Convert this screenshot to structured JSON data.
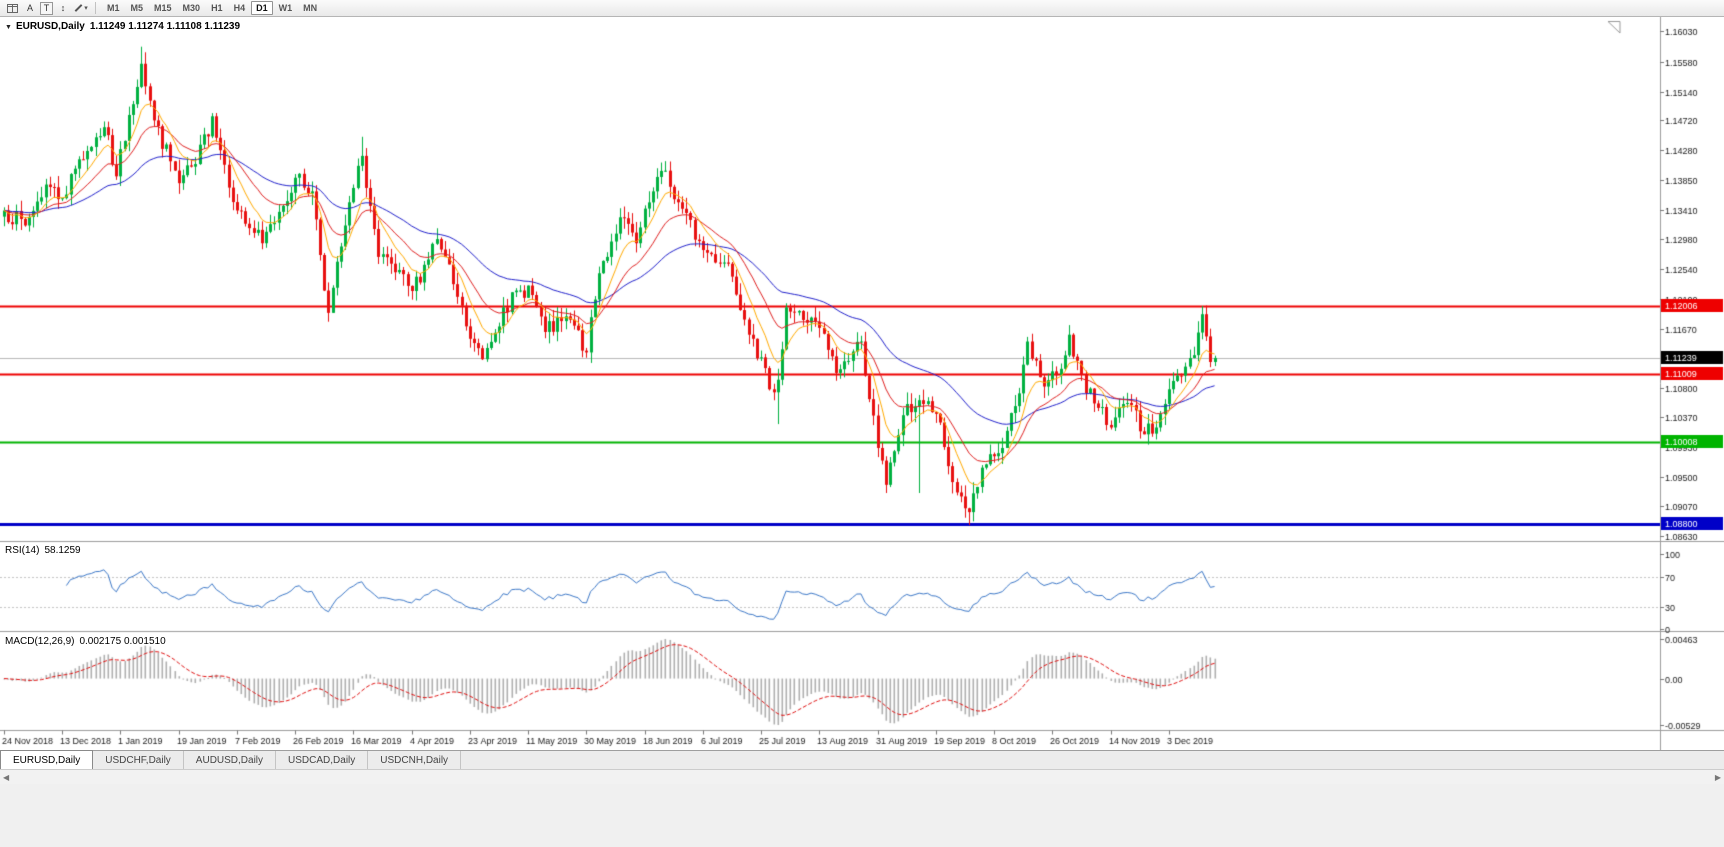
{
  "toolbar": {
    "tools": [
      {
        "name": "chart-windows-icon",
        "label": ""
      },
      {
        "name": "cursor-tool",
        "label": "A"
      },
      {
        "name": "text-tool",
        "label": "T"
      },
      {
        "name": "crosshair-tool",
        "label": "↕"
      },
      {
        "name": "draw-tool",
        "label": ""
      }
    ],
    "caret_glyph": "▾",
    "timeframes": [
      "M1",
      "M5",
      "M15",
      "M30",
      "H1",
      "H4",
      "D1",
      "W1",
      "MN"
    ],
    "active_timeframe": "D1"
  },
  "chart": {
    "collapse_glyph": "▼",
    "title": "EURUSD,Daily",
    "ohlc": "1.11249 1.11274 1.11108 1.11239"
  },
  "chart_data": {
    "type": "candlestick",
    "symbol": "EURUSD",
    "timeframe": "Daily",
    "last_price": 1.11239,
    "current_price_label": "1.11239",
    "price_min": 1.0863,
    "price_max": 1.1603,
    "price_axis_ticks": [
      "1.16030",
      "1.15580",
      "1.15140",
      "1.14720",
      "1.14280",
      "1.13850",
      "1.13410",
      "1.12980",
      "1.12540",
      "1.12100",
      "1.11670",
      "1.10800",
      "1.10370",
      "1.09930",
      "1.09500",
      "1.09070",
      "1.08630"
    ],
    "hlines": [
      {
        "price": 1.12006,
        "label": "1.12006",
        "color": "#ee0000",
        "width": 2
      },
      {
        "price": 1.11009,
        "label": "1.11009",
        "color": "#ee0000",
        "width": 2
      },
      {
        "price": 1.10008,
        "label": "1.10008",
        "color": "#00b400",
        "width": 2
      },
      {
        "price": 1.088,
        "label": "1.08800",
        "color": "#0000c8",
        "width": 3
      }
    ],
    "date_labels": [
      "24 Nov 2018",
      "13 Dec 2018",
      "1 Jan 2019",
      "19 Jan 2019",
      "7 Feb 2019",
      "26 Feb 2019",
      "16 Mar 2019",
      "4 Apr 2019",
      "23 Apr 2019",
      "11 May 2019",
      "30 May 2019",
      "18 Jun 2019",
      "6 Jul 2019",
      "25 Jul 2019",
      "13 Aug 2019",
      "31 Aug 2019",
      "19 Sep 2019",
      "8 Oct 2019",
      "26 Oct 2019",
      "14 Nov 2019",
      "3 Dec 2019"
    ],
    "candle_count": 292,
    "seed": 7,
    "anchors": [
      [
        0,
        1.134
      ],
      [
        5,
        1.1318
      ],
      [
        10,
        1.1378
      ],
      [
        14,
        1.1358
      ],
      [
        18,
        1.1415
      ],
      [
        24,
        1.1462
      ],
      [
        27,
        1.139
      ],
      [
        30,
        1.148
      ],
      [
        33,
        1.1555
      ],
      [
        36,
        1.1472
      ],
      [
        42,
        1.138
      ],
      [
        46,
        1.1408
      ],
      [
        50,
        1.1478
      ],
      [
        56,
        1.134
      ],
      [
        62,
        1.1292
      ],
      [
        66,
        1.1338
      ],
      [
        70,
        1.1388
      ],
      [
        74,
        1.1368
      ],
      [
        78,
        1.119
      ],
      [
        82,
        1.1318
      ],
      [
        86,
        1.142
      ],
      [
        90,
        1.1272
      ],
      [
        98,
        1.1222
      ],
      [
        104,
        1.1298
      ],
      [
        108,
        1.1232
      ],
      [
        112,
        1.1152
      ],
      [
        115,
        1.1122
      ],
      [
        120,
        1.1198
      ],
      [
        126,
        1.123
      ],
      [
        130,
        1.1162
      ],
      [
        136,
        1.118
      ],
      [
        140,
        1.1132
      ],
      [
        143,
        1.1248
      ],
      [
        148,
        1.133
      ],
      [
        152,
        1.1292
      ],
      [
        156,
        1.1368
      ],
      [
        158,
        1.1398
      ],
      [
        162,
        1.1352
      ],
      [
        168,
        1.1282
      ],
      [
        174,
        1.1262
      ],
      [
        180,
        1.1152
      ],
      [
        184,
        1.1078
      ],
      [
        186,
        1.1092
      ],
      [
        188,
        1.1198
      ],
      [
        196,
        1.1168
      ],
      [
        200,
        1.1102
      ],
      [
        206,
        1.1148
      ],
      [
        210,
        1.0992
      ],
      [
        212,
        1.0938
      ],
      [
        216,
        1.104
      ],
      [
        220,
        1.1062
      ],
      [
        224,
        1.1042
      ],
      [
        228,
        1.0942
      ],
      [
        232,
        1.0898
      ],
      [
        236,
        1.0968
      ],
      [
        240,
        1.0992
      ],
      [
        244,
        1.1072
      ],
      [
        246,
        1.1148
      ],
      [
        250,
        1.1082
      ],
      [
        254,
        1.1108
      ],
      [
        256,
        1.1158
      ],
      [
        260,
        1.1072
      ],
      [
        264,
        1.1052
      ],
      [
        266,
        1.1022
      ],
      [
        270,
        1.1058
      ],
      [
        274,
        1.1012
      ],
      [
        277,
        1.1022
      ],
      [
        280,
        1.1078
      ],
      [
        283,
        1.1098
      ],
      [
        286,
        1.1128
      ],
      [
        288,
        1.1188
      ],
      [
        290,
        1.1118
      ],
      [
        291,
        1.11239
      ]
    ],
    "wick_overrides": [
      [
        33,
        "high",
        1.158
      ],
      [
        78,
        "low",
        1.1177
      ],
      [
        86,
        "high",
        1.1448
      ],
      [
        186,
        "low",
        1.1027
      ],
      [
        212,
        "low",
        1.0926
      ],
      [
        220,
        "low",
        1.0926
      ],
      [
        232,
        "low",
        1.0879
      ],
      [
        288,
        "high",
        1.12
      ]
    ],
    "colors": {
      "up": "#00b140",
      "down": "#e81010",
      "ma_fast": "#ffaa00",
      "ma_mid": "#e02020",
      "ma_slow": "#2020cc",
      "grid": "#b8b8b8",
      "axis_text": "#1a1a1a"
    },
    "indicators": {
      "rsi": {
        "label": "RSI(14)",
        "value": "58.1259",
        "period": 14,
        "ticks": [
          "100",
          "70",
          "30",
          "0"
        ],
        "levels": [
          70,
          30
        ],
        "color": "#3c78c8"
      },
      "macd": {
        "label": "MACD(12,26,9)",
        "values": "0.002175 0.001510",
        "tick_top": "0.00463",
        "tick_zero": "0.00",
        "tick_bottom": "-0.00529",
        "histogram_color": "#b0b0b0",
        "signal_color": "#e01010"
      }
    }
  },
  "tabs": [
    {
      "label": "EURUSD,Daily",
      "active": true
    },
    {
      "label": "USDCHF,Daily",
      "active": false
    },
    {
      "label": "AUDUSD,Daily",
      "active": false
    },
    {
      "label": "USDCAD,Daily",
      "active": false
    },
    {
      "label": "USDCNH,Daily",
      "active": false
    }
  ],
  "scrollbar": {
    "left_glyph": "◀",
    "right_glyph": "▶"
  }
}
